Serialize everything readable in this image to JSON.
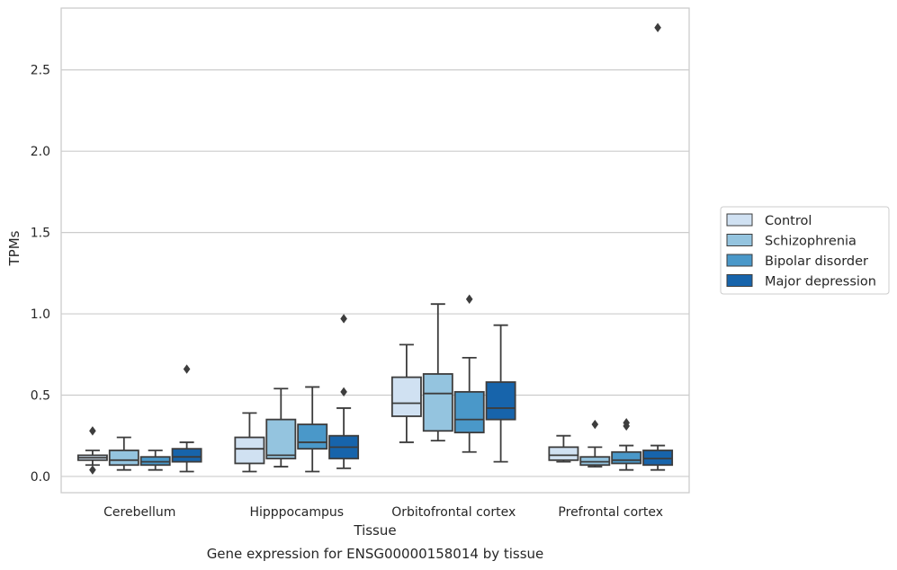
{
  "chart_data": {
    "type": "box",
    "title": "",
    "caption": "Gene expression for ENSG00000158014 by tissue",
    "xlabel": "Tissue",
    "ylabel": "TPMs",
    "ylim": [
      -0.1,
      2.88
    ],
    "yticks": [
      0.0,
      0.5,
      1.0,
      1.5,
      2.0,
      2.5
    ],
    "ytick_labels": [
      "0.0",
      "0.5",
      "1.0",
      "1.5",
      "2.0",
      "2.5"
    ],
    "grid": "horizontal",
    "legend_position": "right",
    "categories": [
      "Cerebellum",
      "Hipppocampus",
      "Orbitofrontal cortex",
      "Prefrontal cortex"
    ],
    "series": [
      {
        "name": "Control",
        "color": "#d0e1f2",
        "boxes": [
          {
            "whislo": 0.07,
            "q1": 0.1,
            "med": 0.115,
            "q3": 0.13,
            "whishi": 0.16,
            "fliers": [
              0.28,
              0.04
            ]
          },
          {
            "whislo": 0.03,
            "q1": 0.08,
            "med": 0.17,
            "q3": 0.24,
            "whishi": 0.39,
            "fliers": []
          },
          {
            "whislo": 0.21,
            "q1": 0.37,
            "med": 0.45,
            "q3": 0.61,
            "whishi": 0.81,
            "fliers": []
          },
          {
            "whislo": 0.09,
            "q1": 0.1,
            "med": 0.13,
            "q3": 0.18,
            "whishi": 0.25,
            "fliers": []
          }
        ]
      },
      {
        "name": "Schizophrenia",
        "color": "#94c4df",
        "boxes": [
          {
            "whislo": 0.04,
            "q1": 0.07,
            "med": 0.1,
            "q3": 0.16,
            "whishi": 0.24,
            "fliers": []
          },
          {
            "whislo": 0.06,
            "q1": 0.11,
            "med": 0.13,
            "q3": 0.35,
            "whishi": 0.54,
            "fliers": []
          },
          {
            "whislo": 0.22,
            "q1": 0.28,
            "med": 0.51,
            "q3": 0.63,
            "whishi": 1.06,
            "fliers": []
          },
          {
            "whislo": 0.06,
            "q1": 0.07,
            "med": 0.09,
            "q3": 0.12,
            "whishi": 0.18,
            "fliers": [
              0.32
            ]
          }
        ]
      },
      {
        "name": "Bipolar disorder",
        "color": "#4a98c9",
        "boxes": [
          {
            "whislo": 0.04,
            "q1": 0.07,
            "med": 0.09,
            "q3": 0.12,
            "whishi": 0.16,
            "fliers": []
          },
          {
            "whislo": 0.03,
            "q1": 0.17,
            "med": 0.21,
            "q3": 0.32,
            "whishi": 0.55,
            "fliers": []
          },
          {
            "whislo": 0.15,
            "q1": 0.27,
            "med": 0.35,
            "q3": 0.52,
            "whishi": 0.73,
            "fliers": [
              1.09
            ]
          },
          {
            "whislo": 0.04,
            "q1": 0.08,
            "med": 0.1,
            "q3": 0.15,
            "whishi": 0.19,
            "fliers": [
              0.33,
              0.31
            ]
          }
        ]
      },
      {
        "name": "Major depression",
        "color": "#1764ab",
        "boxes": [
          {
            "whislo": 0.03,
            "q1": 0.09,
            "med": 0.12,
            "q3": 0.17,
            "whishi": 0.21,
            "fliers": [
              0.66
            ]
          },
          {
            "whislo": 0.05,
            "q1": 0.11,
            "med": 0.18,
            "q3": 0.25,
            "whishi": 0.42,
            "fliers": [
              0.52,
              0.97
            ]
          },
          {
            "whislo": 0.09,
            "q1": 0.35,
            "med": 0.42,
            "q3": 0.58,
            "whishi": 0.93,
            "fliers": []
          },
          {
            "whislo": 0.04,
            "q1": 0.07,
            "med": 0.11,
            "q3": 0.16,
            "whishi": 0.19,
            "fliers": [
              2.76
            ]
          }
        ]
      }
    ]
  }
}
